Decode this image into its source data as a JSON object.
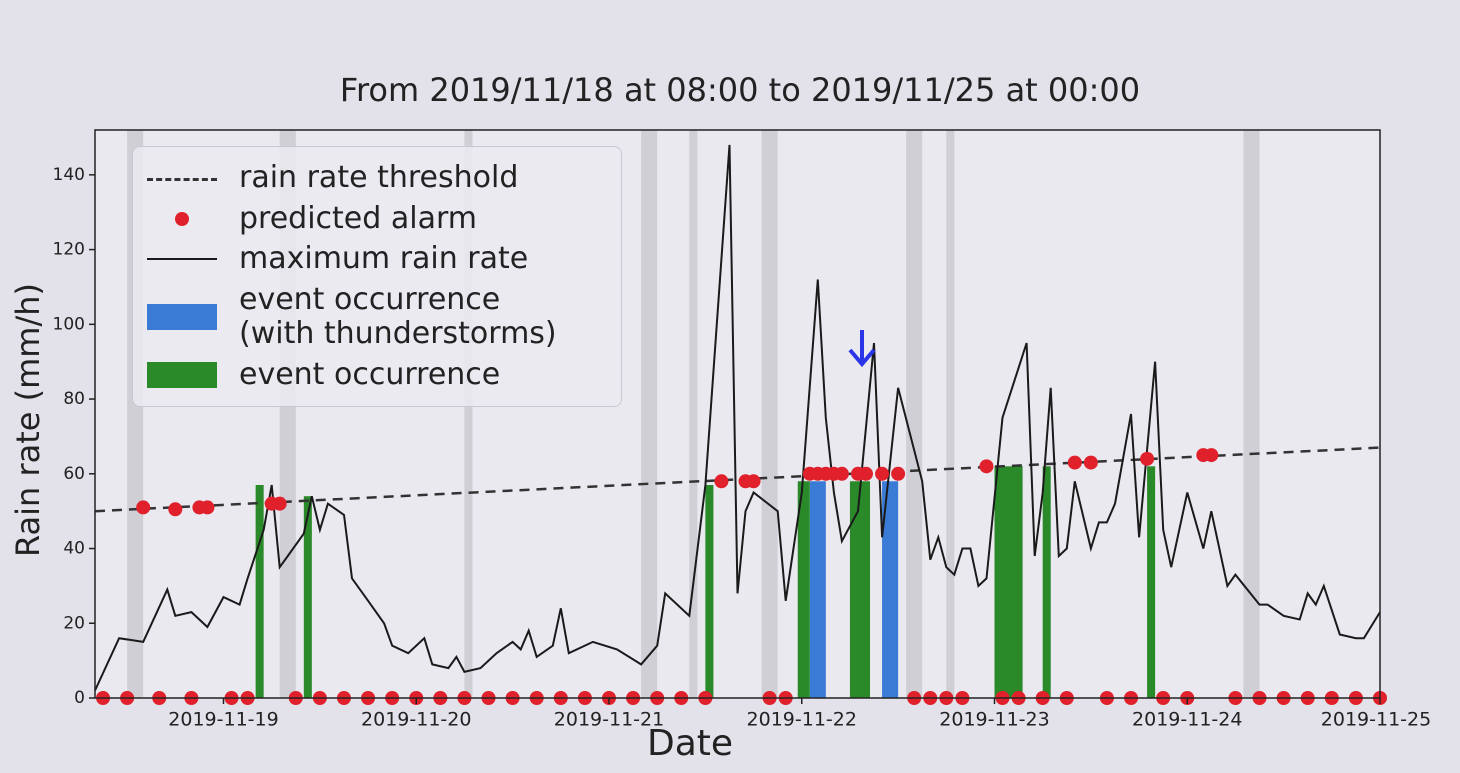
{
  "chart_data": {
    "type": "line",
    "title": "From 2019/11/18 at 08:00 to 2019/11/25 at 00:00",
    "xlabel": "Date",
    "ylabel": "Rain rate (mm/h)",
    "xlim": [
      "2019-11-18 08:00",
      "2019-11-25 00:00"
    ],
    "ylim": [
      0,
      152
    ],
    "yticks": [
      0,
      20,
      40,
      60,
      80,
      100,
      120,
      140
    ],
    "xticks": [
      "2019-11-19",
      "2019-11-20",
      "2019-11-21",
      "2019-11-22",
      "2019-11-23",
      "2019-11-24",
      "2019-11-25"
    ],
    "shaded_color": "#c9c8ce",
    "shaded_intervals": [
      [
        "2019-11-18 12:00",
        "2019-11-18 14:00"
      ],
      [
        "2019-11-19 07:00",
        "2019-11-19 09:00"
      ],
      [
        "2019-11-20 06:00",
        "2019-11-20 07:00"
      ],
      [
        "2019-11-21 04:00",
        "2019-11-21 06:00"
      ],
      [
        "2019-11-21 10:00",
        "2019-11-21 11:00"
      ],
      [
        "2019-11-21 19:00",
        "2019-11-21 21:00"
      ],
      [
        "2019-11-22 13:00",
        "2019-11-22 15:00"
      ],
      [
        "2019-11-22 18:00",
        "2019-11-22 19:00"
      ],
      [
        "2019-11-24 07:00",
        "2019-11-24 09:00"
      ]
    ],
    "series": [
      {
        "name": "rain rate threshold",
        "color": "#333333",
        "style": "dashed",
        "x": [
          "2019-11-18 08:00",
          "2019-11-25 00:00"
        ],
        "values": [
          50,
          67
        ]
      },
      {
        "name": "predicted alarm",
        "color": "#e0202a",
        "style": "dots",
        "x": [
          "2019-11-18 09:00",
          "2019-11-18 12:00",
          "2019-11-18 14:00",
          "2019-11-18 16:00",
          "2019-11-18 18:00",
          "2019-11-18 20:00",
          "2019-11-18 21:00",
          "2019-11-18 22:00",
          "2019-11-19 01:00",
          "2019-11-19 03:00",
          "2019-11-19 06:00",
          "2019-11-19 07:00",
          "2019-11-19 09:00",
          "2019-11-19 12:00",
          "2019-11-19 15:00",
          "2019-11-19 18:00",
          "2019-11-19 21:00",
          "2019-11-20 00:00",
          "2019-11-20 03:00",
          "2019-11-20 06:00",
          "2019-11-20 09:00",
          "2019-11-20 12:00",
          "2019-11-20 15:00",
          "2019-11-20 18:00",
          "2019-11-20 21:00",
          "2019-11-21 00:00",
          "2019-11-21 03:00",
          "2019-11-21 06:00",
          "2019-11-21 09:00",
          "2019-11-21 12:00",
          "2019-11-21 14:00",
          "2019-11-21 17:00",
          "2019-11-21 18:00",
          "2019-11-21 20:00",
          "2019-11-21 22:00",
          "2019-11-22 01:00",
          "2019-11-22 02:00",
          "2019-11-22 03:00",
          "2019-11-22 04:00",
          "2019-11-22 05:00",
          "2019-11-22 07:00",
          "2019-11-22 08:00",
          "2019-11-22 10:00",
          "2019-11-22 12:00",
          "2019-11-22 14:00",
          "2019-11-22 16:00",
          "2019-11-22 18:00",
          "2019-11-22 20:00",
          "2019-11-22 23:00",
          "2019-11-23 01:00",
          "2019-11-23 03:00",
          "2019-11-23 06:00",
          "2019-11-23 09:00",
          "2019-11-23 10:00",
          "2019-11-23 12:00",
          "2019-11-23 14:00",
          "2019-11-23 17:00",
          "2019-11-23 19:00",
          "2019-11-23 21:00",
          "2019-11-24 00:00",
          "2019-11-24 02:00",
          "2019-11-24 03:00",
          "2019-11-24 06:00",
          "2019-11-24 09:00",
          "2019-11-24 12:00",
          "2019-11-24 15:00",
          "2019-11-24 18:00",
          "2019-11-24 21:00",
          "2019-11-25 00:00"
        ],
        "values": [
          0,
          0,
          51,
          0,
          50.5,
          0,
          51,
          51,
          0,
          0,
          52,
          52,
          0,
          0,
          0,
          0,
          0,
          0,
          0,
          0,
          0,
          0,
          0,
          0,
          0,
          0,
          0,
          0,
          0,
          0,
          58,
          58,
          58,
          0,
          0,
          60,
          60,
          60,
          60,
          60,
          60,
          60,
          60,
          60,
          0,
          0,
          0,
          0,
          62,
          0,
          0,
          0,
          0,
          63,
          63,
          0,
          0,
          64,
          0,
          0,
          65,
          65,
          0,
          0,
          0,
          0,
          0,
          0,
          0
        ]
      },
      {
        "name": "maximum rain rate",
        "color": "#1a1a1a",
        "style": "solid",
        "x": [
          "2019-11-18 08:00",
          "2019-11-18 11:00",
          "2019-11-18 14:00",
          "2019-11-18 17:00",
          "2019-11-18 18:00",
          "2019-11-18 20:00",
          "2019-11-18 22:00",
          "2019-11-19 00:00",
          "2019-11-19 02:00",
          "2019-11-19 03:00",
          "2019-11-19 05:00",
          "2019-11-19 06:00",
          "2019-11-19 07:00",
          "2019-11-19 08:00",
          "2019-11-19 10:00",
          "2019-11-19 11:00",
          "2019-11-19 12:00",
          "2019-11-19 13:00",
          "2019-11-19 15:00",
          "2019-11-19 16:00",
          "2019-11-19 18:00",
          "2019-11-19 20:00",
          "2019-11-19 21:00",
          "2019-11-19 23:00",
          "2019-11-20 01:00",
          "2019-11-20 02:00",
          "2019-11-20 04:00",
          "2019-11-20 05:00",
          "2019-11-20 06:00",
          "2019-11-20 08:00",
          "2019-11-20 10:00",
          "2019-11-20 12:00",
          "2019-11-20 13:00",
          "2019-11-20 14:00",
          "2019-11-20 15:00",
          "2019-11-20 17:00",
          "2019-11-20 18:00",
          "2019-11-20 19:00",
          "2019-11-20 22:00",
          "2019-11-21 01:00",
          "2019-11-21 04:00",
          "2019-11-21 06:00",
          "2019-11-21 07:00",
          "2019-11-21 10:00",
          "2019-11-21 12:00",
          "2019-11-21 15:00",
          "2019-11-21 16:00",
          "2019-11-21 17:00",
          "2019-11-21 18:00",
          "2019-11-21 21:00",
          "2019-11-21 22:00",
          "2019-11-22 00:00",
          "2019-11-22 02:00",
          "2019-11-22 03:00",
          "2019-11-22 04:00",
          "2019-11-22 05:00",
          "2019-11-22 07:00",
          "2019-11-22 09:00",
          "2019-11-22 10:00",
          "2019-11-22 12:00",
          "2019-11-22 15:00",
          "2019-11-22 16:00",
          "2019-11-22 17:00",
          "2019-11-22 18:00",
          "2019-11-22 19:00",
          "2019-11-22 20:00",
          "2019-11-22 21:00",
          "2019-11-22 22:00",
          "2019-11-22 23:00",
          "2019-11-23 01:00",
          "2019-11-23 04:00",
          "2019-11-23 05:00",
          "2019-11-23 06:00",
          "2019-11-23 07:00",
          "2019-11-23 08:00",
          "2019-11-23 09:00",
          "2019-11-23 10:00",
          "2019-11-23 12:00",
          "2019-11-23 13:00",
          "2019-11-23 14:00",
          "2019-11-23 15:00",
          "2019-11-23 17:00",
          "2019-11-23 18:00",
          "2019-11-23 20:00",
          "2019-11-23 21:00",
          "2019-11-23 22:00",
          "2019-11-24 00:00",
          "2019-11-24 02:00",
          "2019-11-24 03:00",
          "2019-11-24 05:00",
          "2019-11-24 06:00",
          "2019-11-24 09:00",
          "2019-11-24 10:00",
          "2019-11-24 12:00",
          "2019-11-24 14:00",
          "2019-11-24 15:00",
          "2019-11-24 16:00",
          "2019-11-24 17:00",
          "2019-11-24 19:00",
          "2019-11-24 21:00",
          "2019-11-24 22:00",
          "2019-11-25 00:00"
        ],
        "values": [
          2,
          16,
          15,
          29,
          22,
          23,
          19,
          27,
          25,
          32,
          45,
          57,
          35,
          38,
          44,
          54,
          45,
          52,
          49,
          32,
          26,
          20,
          14,
          12,
          16,
          9,
          8,
          11,
          7,
          8,
          12,
          15,
          13,
          18,
          11,
          14,
          24,
          12,
          15,
          13,
          9,
          14,
          28,
          22,
          57,
          148,
          28,
          50,
          55,
          50,
          26,
          55,
          112,
          75,
          55,
          42,
          50,
          95,
          43,
          83,
          58,
          37,
          43,
          35,
          33,
          40,
          40,
          30,
          32,
          75,
          95,
          38,
          55,
          83,
          38,
          40,
          58,
          40,
          47,
          47,
          52,
          76,
          43,
          90,
          45,
          35,
          55,
          40,
          50,
          30,
          33,
          25,
          25,
          22,
          21,
          28,
          25,
          30,
          17,
          16,
          16,
          23
        ]
      }
    ],
    "events": [
      {
        "name": "event occurrence\n(with thunderstorms)",
        "color": "#3a7bd5",
        "intervals": [
          {
            "x": [
              "2019-11-22 01:00",
              "2019-11-22 03:00"
            ],
            "value": 58
          },
          {
            "x": [
              "2019-11-22 10:00",
              "2019-11-22 12:00"
            ],
            "value": 58
          }
        ]
      },
      {
        "name": "event occurrence",
        "color": "#2a8a2a",
        "intervals": [
          {
            "x": [
              "2019-11-19 04:00",
              "2019-11-19 05:00"
            ],
            "value": 57
          },
          {
            "x": [
              "2019-11-19 10:00",
              "2019-11-19 11:00"
            ],
            "value": 54
          },
          {
            "x": [
              "2019-11-21 12:00",
              "2019-11-21 13:00"
            ],
            "value": 57
          },
          {
            "x": [
              "2019-11-21 23:30",
              "2019-11-22 01:00"
            ],
            "value": 58
          },
          {
            "x": [
              "2019-11-22 06:00",
              "2019-11-22 08:30"
            ],
            "value": 58
          },
          {
            "x": [
              "2019-11-23 00:00",
              "2019-11-23 03:30"
            ],
            "value": 62
          },
          {
            "x": [
              "2019-11-23 06:00",
              "2019-11-23 07:00"
            ],
            "value": 62
          },
          {
            "x": [
              "2019-11-23 19:00",
              "2019-11-23 20:00"
            ],
            "value": 62
          }
        ]
      }
    ]
  }
}
